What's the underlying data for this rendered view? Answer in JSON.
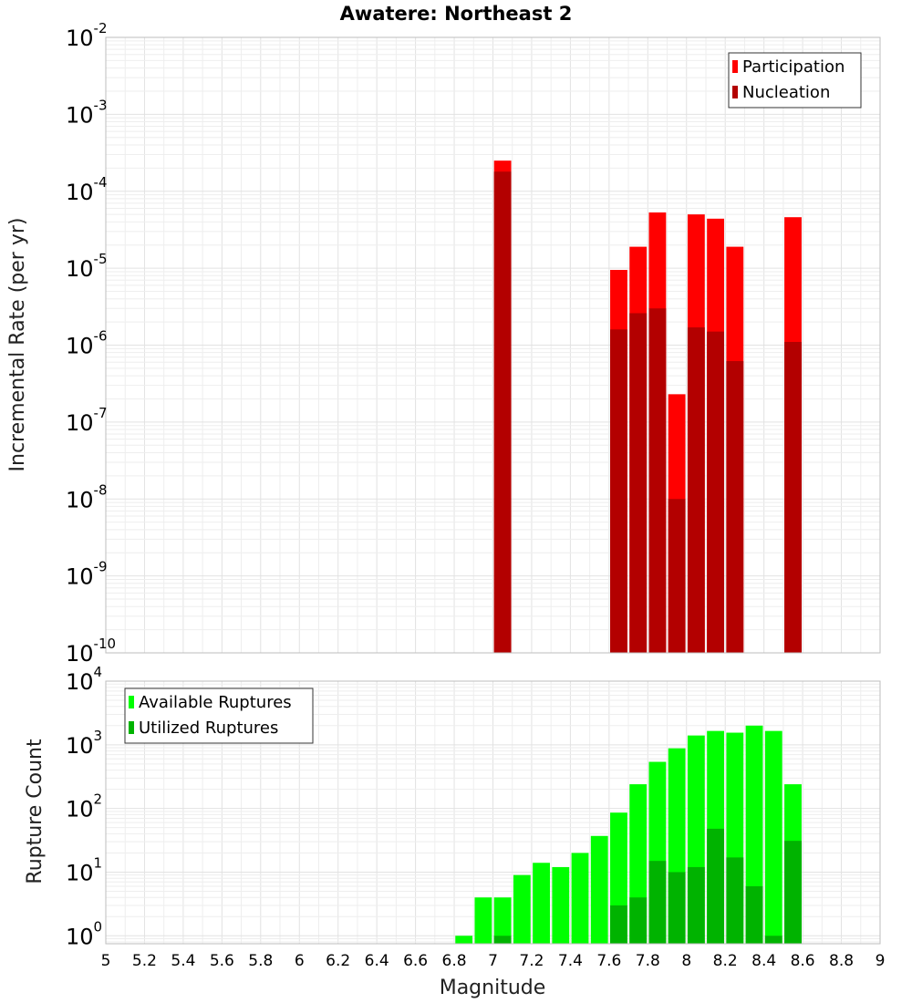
{
  "title": "Awatere: Northeast 2",
  "chart_data": [
    {
      "type": "bar",
      "name": "incremental-rate",
      "title": "Awatere: Northeast 2",
      "xlabel": "Magnitude",
      "ylabel": "Incremental Rate (per yr)",
      "xlim": [
        5,
        9
      ],
      "ylim": [
        1e-10,
        0.01
      ],
      "yscale": "log",
      "grid": true,
      "legend_position": "top-right",
      "bin_width": 0.1,
      "x_ticks": [
        "5",
        "5.2",
        "5.4",
        "5.6",
        "5.8",
        "6",
        "6.2",
        "6.4",
        "6.6",
        "6.8",
        "7",
        "7.2",
        "7.4",
        "7.6",
        "7.8",
        "8",
        "8.2",
        "8.4",
        "8.6",
        "8.8",
        "9"
      ],
      "y_tick_exponents": [
        "-10",
        "-9",
        "-8",
        "-7",
        "-6",
        "-5",
        "-4",
        "-3",
        "-2"
      ],
      "series": [
        {
          "name": "Participation",
          "color": "#ff0000",
          "x": [
            7.05,
            7.65,
            7.75,
            7.85,
            7.95,
            8.05,
            8.15,
            8.25,
            8.55
          ],
          "values": [
            0.00025,
            9.5e-06,
            1.9e-05,
            5.3e-05,
            2.3e-07,
            5e-05,
            4.4e-05,
            1.9e-05,
            4.6e-05
          ]
        },
        {
          "name": "Nucleation",
          "color": "#b30000",
          "x": [
            7.05,
            7.65,
            7.75,
            7.85,
            7.95,
            8.05,
            8.15,
            8.25,
            8.55
          ],
          "values": [
            0.00018,
            1.6e-06,
            2.6e-06,
            3e-06,
            1e-08,
            1.7e-06,
            1.5e-06,
            6.2e-07,
            1.1e-06
          ]
        }
      ]
    },
    {
      "type": "bar",
      "name": "rupture-count",
      "xlabel": "Magnitude",
      "ylabel": "Rupture Count",
      "xlim": [
        5,
        9
      ],
      "ylim": [
        0.75,
        10000.0
      ],
      "yscale": "log",
      "grid": true,
      "legend_position": "top-left",
      "bin_width": 0.1,
      "y_tick_exponents": [
        "0",
        "1",
        "2",
        "3",
        "4"
      ],
      "series": [
        {
          "name": "Available Ruptures",
          "color": "#00ff00",
          "x": [
            6.85,
            6.95,
            7.05,
            7.15,
            7.25,
            7.35,
            7.45,
            7.55,
            7.65,
            7.75,
            7.85,
            7.95,
            8.05,
            8.15,
            8.25,
            8.35,
            8.45,
            8.55
          ],
          "values": [
            1,
            4,
            4,
            9,
            14,
            12,
            20,
            37,
            86,
            240,
            540,
            880,
            1400,
            1650,
            1550,
            2000,
            1650,
            240
          ]
        },
        {
          "name": "Utilized Ruptures",
          "color": "#00b300",
          "x": [
            7.05,
            7.65,
            7.75,
            7.85,
            7.95,
            8.05,
            8.15,
            8.25,
            8.35,
            8.45,
            8.55
          ],
          "values": [
            1,
            3,
            4,
            15,
            10,
            12,
            48,
            17,
            6,
            1,
            31
          ]
        }
      ]
    }
  ]
}
